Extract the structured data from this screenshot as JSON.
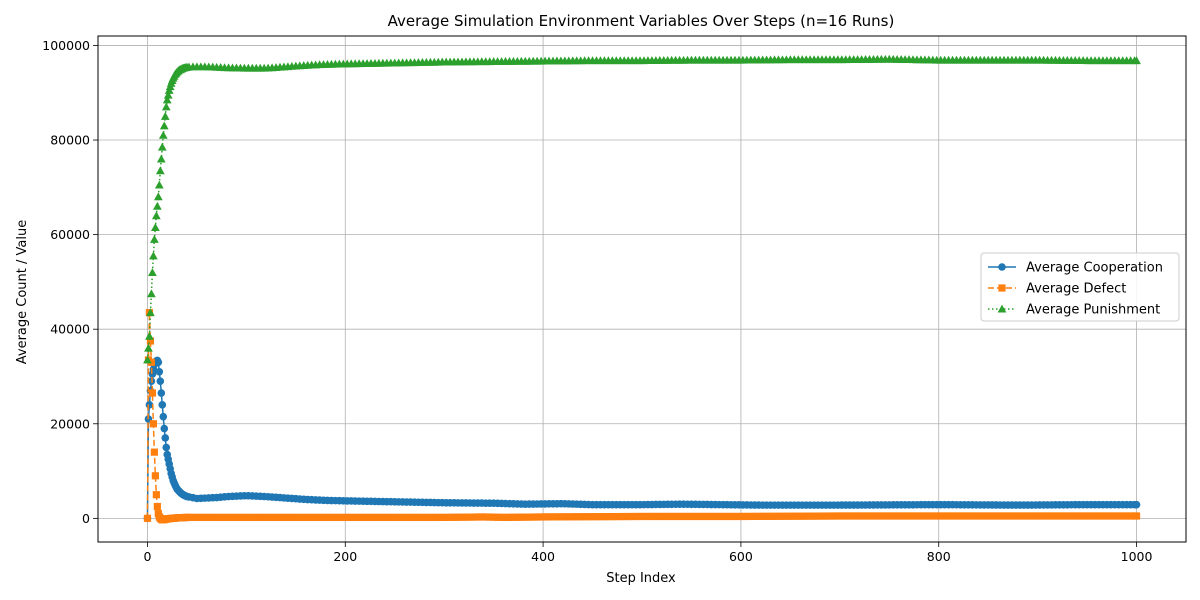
{
  "chart_data": {
    "type": "line",
    "title": "Average Simulation Environment Variables Over Steps (n=16 Runs)",
    "xlabel": "Step Index",
    "ylabel": "Average Count / Value",
    "xlim": [
      -50,
      1050
    ],
    "ylim": [
      -5000,
      102000
    ],
    "xticks": [
      0,
      200,
      400,
      600,
      800,
      1000
    ],
    "yticks": [
      0,
      20000,
      40000,
      60000,
      80000,
      100000
    ],
    "grid": true,
    "legend_position": "center-right",
    "series": [
      {
        "name": "Average Cooperation",
        "color": "#1f77b4",
        "marker": "circle",
        "linestyle": "solid",
        "x": [
          0,
          1,
          2,
          3,
          4,
          5,
          6,
          7,
          8,
          9,
          10,
          11,
          12,
          13,
          14,
          15,
          16,
          17,
          18,
          19,
          20,
          22,
          24,
          26,
          28,
          30,
          33,
          36,
          40,
          45,
          50,
          60,
          70,
          80,
          90,
          100,
          110,
          120,
          140,
          160,
          180,
          200,
          250,
          300,
          350,
          380,
          420,
          450,
          500,
          540,
          580,
          620,
          700,
          800,
          880,
          950,
          1000
        ],
        "y": [
          0,
          21000,
          24000,
          27000,
          29000,
          30500,
          31500,
          32500,
          33000,
          33300,
          33400,
          33000,
          31000,
          29000,
          26500,
          24000,
          21500,
          19000,
          17000,
          15000,
          13500,
          11500,
          9500,
          8000,
          7000,
          6200,
          5500,
          5000,
          4600,
          4400,
          4200,
          4300,
          4400,
          4600,
          4700,
          4800,
          4700,
          4600,
          4300,
          4000,
          3800,
          3700,
          3500,
          3300,
          3200,
          3000,
          3100,
          2900,
          2900,
          3000,
          2900,
          2800,
          2800,
          2900,
          2800,
          2900,
          2900
        ]
      },
      {
        "name": "Average Defect",
        "color": "#ff7f0e",
        "marker": "square",
        "linestyle": "dashed",
        "x": [
          0,
          1,
          2,
          3,
          4,
          5,
          6,
          7,
          8,
          9,
          10,
          11,
          12,
          13,
          14,
          15,
          16,
          18,
          20,
          25,
          30,
          40,
          60,
          100,
          200,
          300,
          340,
          360,
          400,
          500,
          600,
          700,
          800,
          900,
          950,
          1000
        ],
        "y": [
          0,
          33500,
          43500,
          37500,
          33000,
          26500,
          20000,
          14000,
          9000,
          5000,
          2500,
          1000,
          300,
          0,
          -200,
          -300,
          -300,
          -200,
          -100,
          0,
          100,
          200,
          200,
          200,
          200,
          200,
          300,
          200,
          300,
          400,
          400,
          500,
          500,
          500,
          500,
          500
        ]
      },
      {
        "name": "Average Punishment",
        "color": "#2ca02c",
        "marker": "triangle",
        "linestyle": "dotted",
        "x": [
          0,
          1,
          2,
          3,
          4,
          5,
          6,
          7,
          8,
          9,
          10,
          11,
          12,
          13,
          14,
          15,
          16,
          17,
          18,
          19,
          20,
          21,
          22,
          23,
          24,
          25,
          26,
          27,
          28,
          30,
          32,
          34,
          36,
          38,
          40,
          45,
          50,
          60,
          80,
          100,
          120,
          140,
          160,
          180,
          200,
          250,
          300,
          350,
          400,
          450,
          500,
          550,
          600,
          650,
          700,
          750,
          800,
          850,
          900,
          950,
          1000
        ],
        "y": [
          33500,
          36000,
          38500,
          43500,
          47500,
          52000,
          55500,
          59000,
          61500,
          64000,
          66000,
          68000,
          70500,
          73500,
          76000,
          78500,
          81000,
          83000,
          85000,
          87000,
          88500,
          89500,
          90500,
          91300,
          92000,
          92600,
          93100,
          93500,
          93900,
          94400,
          94800,
          95000,
          95200,
          95300,
          95400,
          95500,
          95500,
          95500,
          95300,
          95200,
          95200,
          95500,
          95800,
          96000,
          96100,
          96300,
          96500,
          96600,
          96700,
          96800,
          96800,
          96900,
          96900,
          97000,
          97000,
          97100,
          96900,
          96900,
          96900,
          96800,
          96800
        ]
      }
    ]
  }
}
